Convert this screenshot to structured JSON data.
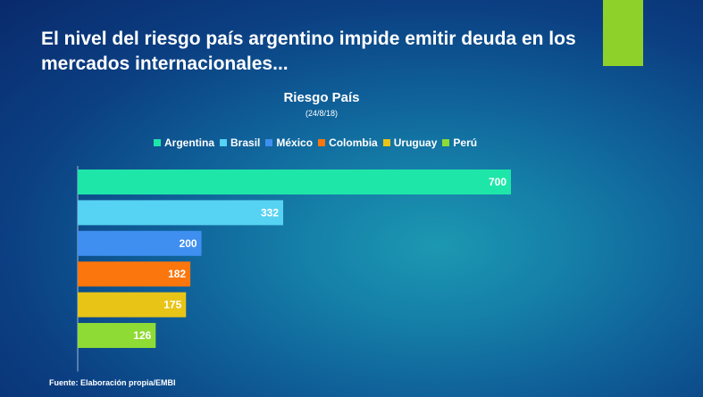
{
  "slide": {
    "title": "El nivel del riesgo país argentino impide emitir deuda en los mercados internacionales...",
    "source": "Fuente: Elaboración propia/EMBI",
    "accent_color": "#8fd12b"
  },
  "chart_data": {
    "type": "bar",
    "orientation": "horizontal",
    "title": "Riesgo País",
    "subtitle": "(24/8/18)",
    "categories": [
      "Argentina",
      "Brasil",
      "México",
      "Colombia",
      "Uruguay",
      "Perú"
    ],
    "values": [
      700,
      332,
      200,
      182,
      175,
      126
    ],
    "colors": [
      "#1ee6a8",
      "#56d2f2",
      "#3f8ff0",
      "#fb760d",
      "#e8c417",
      "#8fdb35"
    ],
    "legend": {
      "position": "top",
      "entries": [
        "Argentina",
        "Brasil",
        "México",
        "Colombia",
        "Uruguay",
        "Perú"
      ]
    },
    "data_labels": [
      "700",
      "332",
      "200",
      "182",
      "175",
      "126"
    ],
    "xlim": [
      0,
      800
    ],
    "grid": false,
    "xlabel": "",
    "ylabel": ""
  }
}
